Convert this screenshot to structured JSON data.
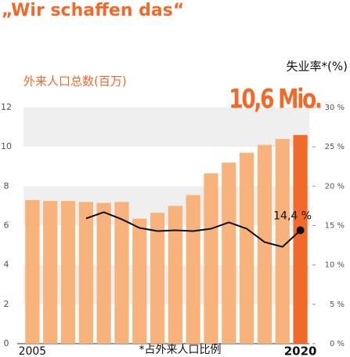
{
  "chart_data": {
    "type": "bar",
    "title": "„Wir schaffen das“",
    "y_label": "外来人口总数(百万)",
    "y2_label": "失业率*(%)",
    "note": "*占外来人口比例",
    "categories": [
      "2005",
      null,
      null,
      null,
      null,
      null,
      null,
      null,
      null,
      null,
      null,
      null,
      null,
      null,
      null,
      "2020"
    ],
    "series": [
      {
        "name": "外来人口总数",
        "type": "bar",
        "colors": [
          "#f8b27b",
          "#f8b27b",
          "#f8b27b",
          "#f8b27b",
          "#f8b27b",
          "#f8b27b",
          "#f8b27b",
          "#f8b27b",
          "#f8b27b",
          "#f8b27b",
          "#f8b27b",
          "#f8b27b",
          "#f8b27b",
          "#f8b27b",
          "#f8b27b",
          "#f26a2b"
        ],
        "values": [
          7.3,
          7.25,
          7.25,
          7.2,
          7.15,
          7.2,
          6.35,
          6.65,
          7.0,
          7.55,
          8.65,
          9.2,
          9.7,
          10.1,
          10.4,
          10.6
        ],
        "value_labels": [
          null,
          null,
          null,
          null,
          null,
          null,
          null,
          null,
          null,
          null,
          null,
          null,
          null,
          null,
          null,
          "10,6 Mio."
        ]
      },
      {
        "name": "失业率",
        "type": "line",
        "axis": "y2",
        "color": "#111111",
        "values": [
          null,
          null,
          null,
          15.9,
          16.7,
          15.8,
          14.7,
          14.3,
          14.4,
          14.3,
          14.6,
          15.4,
          14.6,
          12.9,
          12.3,
          14.4
        ],
        "value_labels": [
          null,
          null,
          null,
          null,
          null,
          null,
          null,
          null,
          null,
          null,
          null,
          null,
          null,
          null,
          null,
          "14,4 %"
        ]
      }
    ],
    "ylim": [
      0,
      12
    ],
    "yticks": [
      0,
      2,
      4,
      6,
      8,
      10,
      12
    ],
    "y2lim": [
      0,
      30
    ],
    "y2ticks": [
      {
        "value": 0,
        "label": "0 %"
      },
      {
        "value": 5,
        "label": "5 %"
      },
      {
        "value": 10,
        "label": "10 %"
      },
      {
        "value": 15,
        "label": "15 %"
      },
      {
        "value": 20,
        "label": "20 %"
      },
      {
        "value": 25,
        "label": "25 %"
      },
      {
        "value": 30,
        "label": "30 %"
      }
    ]
  }
}
